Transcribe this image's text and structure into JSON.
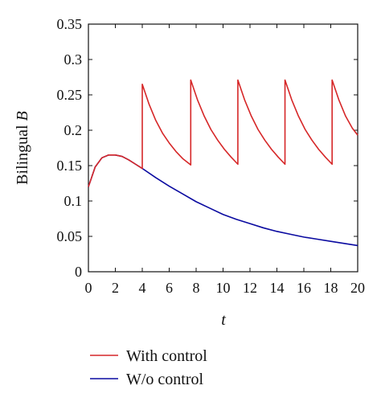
{
  "chart_data": {
    "type": "line",
    "title": "",
    "xlabel": "t",
    "ylabel": {
      "text": "Bilingual",
      "var": "B"
    },
    "xlim": [
      0,
      20
    ],
    "ylim": [
      0,
      0.35
    ],
    "xticks": [
      "0",
      "2",
      "4",
      "6",
      "8",
      "10",
      "12",
      "14",
      "16",
      "18",
      "20"
    ],
    "yticks": [
      "0",
      "0.05",
      "0.1",
      "0.15",
      "0.2",
      "0.25",
      "0.3",
      "0.35"
    ],
    "grid": false,
    "legend_position": "bottom",
    "series": [
      {
        "name": "With control",
        "color": "#d62728",
        "points": [
          [
            0,
            0.12
          ],
          [
            0.5,
            0.148
          ],
          [
            1,
            0.161
          ],
          [
            1.5,
            0.165
          ],
          [
            2,
            0.165
          ],
          [
            2.5,
            0.163
          ],
          [
            3,
            0.158
          ],
          [
            3.5,
            0.152
          ],
          [
            4,
            0.146
          ],
          [
            4,
            0.265
          ],
          [
            4.5,
            0.237
          ],
          [
            5,
            0.214
          ],
          [
            5.5,
            0.196
          ],
          [
            6,
            0.182
          ],
          [
            6.5,
            0.17
          ],
          [
            7,
            0.16
          ],
          [
            7.6,
            0.151
          ],
          [
            7.6,
            0.271
          ],
          [
            8.1,
            0.243
          ],
          [
            8.6,
            0.22
          ],
          [
            9.1,
            0.201
          ],
          [
            9.6,
            0.186
          ],
          [
            10.1,
            0.173
          ],
          [
            10.6,
            0.162
          ],
          [
            11.1,
            0.152
          ],
          [
            11.1,
            0.271
          ],
          [
            11.6,
            0.243
          ],
          [
            12.1,
            0.22
          ],
          [
            12.6,
            0.201
          ],
          [
            13.1,
            0.186
          ],
          [
            13.6,
            0.173
          ],
          [
            14.1,
            0.162
          ],
          [
            14.6,
            0.152
          ],
          [
            14.6,
            0.271
          ],
          [
            15.1,
            0.243
          ],
          [
            15.6,
            0.22
          ],
          [
            16.1,
            0.201
          ],
          [
            16.6,
            0.186
          ],
          [
            17.1,
            0.173
          ],
          [
            17.6,
            0.162
          ],
          [
            18.1,
            0.152
          ],
          [
            18.1,
            0.271
          ],
          [
            18.6,
            0.243
          ],
          [
            19.1,
            0.22
          ],
          [
            19.6,
            0.203
          ],
          [
            20,
            0.193
          ]
        ]
      },
      {
        "name": "W/o control",
        "color": "#0a0aa0",
        "points": [
          [
            0,
            0.12
          ],
          [
            0.5,
            0.148
          ],
          [
            1,
            0.161
          ],
          [
            1.5,
            0.165
          ],
          [
            2,
            0.165
          ],
          [
            2.5,
            0.163
          ],
          [
            3,
            0.158
          ],
          [
            3.5,
            0.152
          ],
          [
            4,
            0.146
          ],
          [
            5,
            0.133
          ],
          [
            6,
            0.121
          ],
          [
            7,
            0.11
          ],
          [
            8,
            0.099
          ],
          [
            9,
            0.09
          ],
          [
            10,
            0.081
          ],
          [
            11,
            0.074
          ],
          [
            12,
            0.068
          ],
          [
            13,
            0.062
          ],
          [
            14,
            0.057
          ],
          [
            15,
            0.053
          ],
          [
            16,
            0.049
          ],
          [
            17,
            0.046
          ],
          [
            18,
            0.043
          ],
          [
            19,
            0.04
          ],
          [
            20,
            0.037
          ]
        ]
      }
    ]
  }
}
